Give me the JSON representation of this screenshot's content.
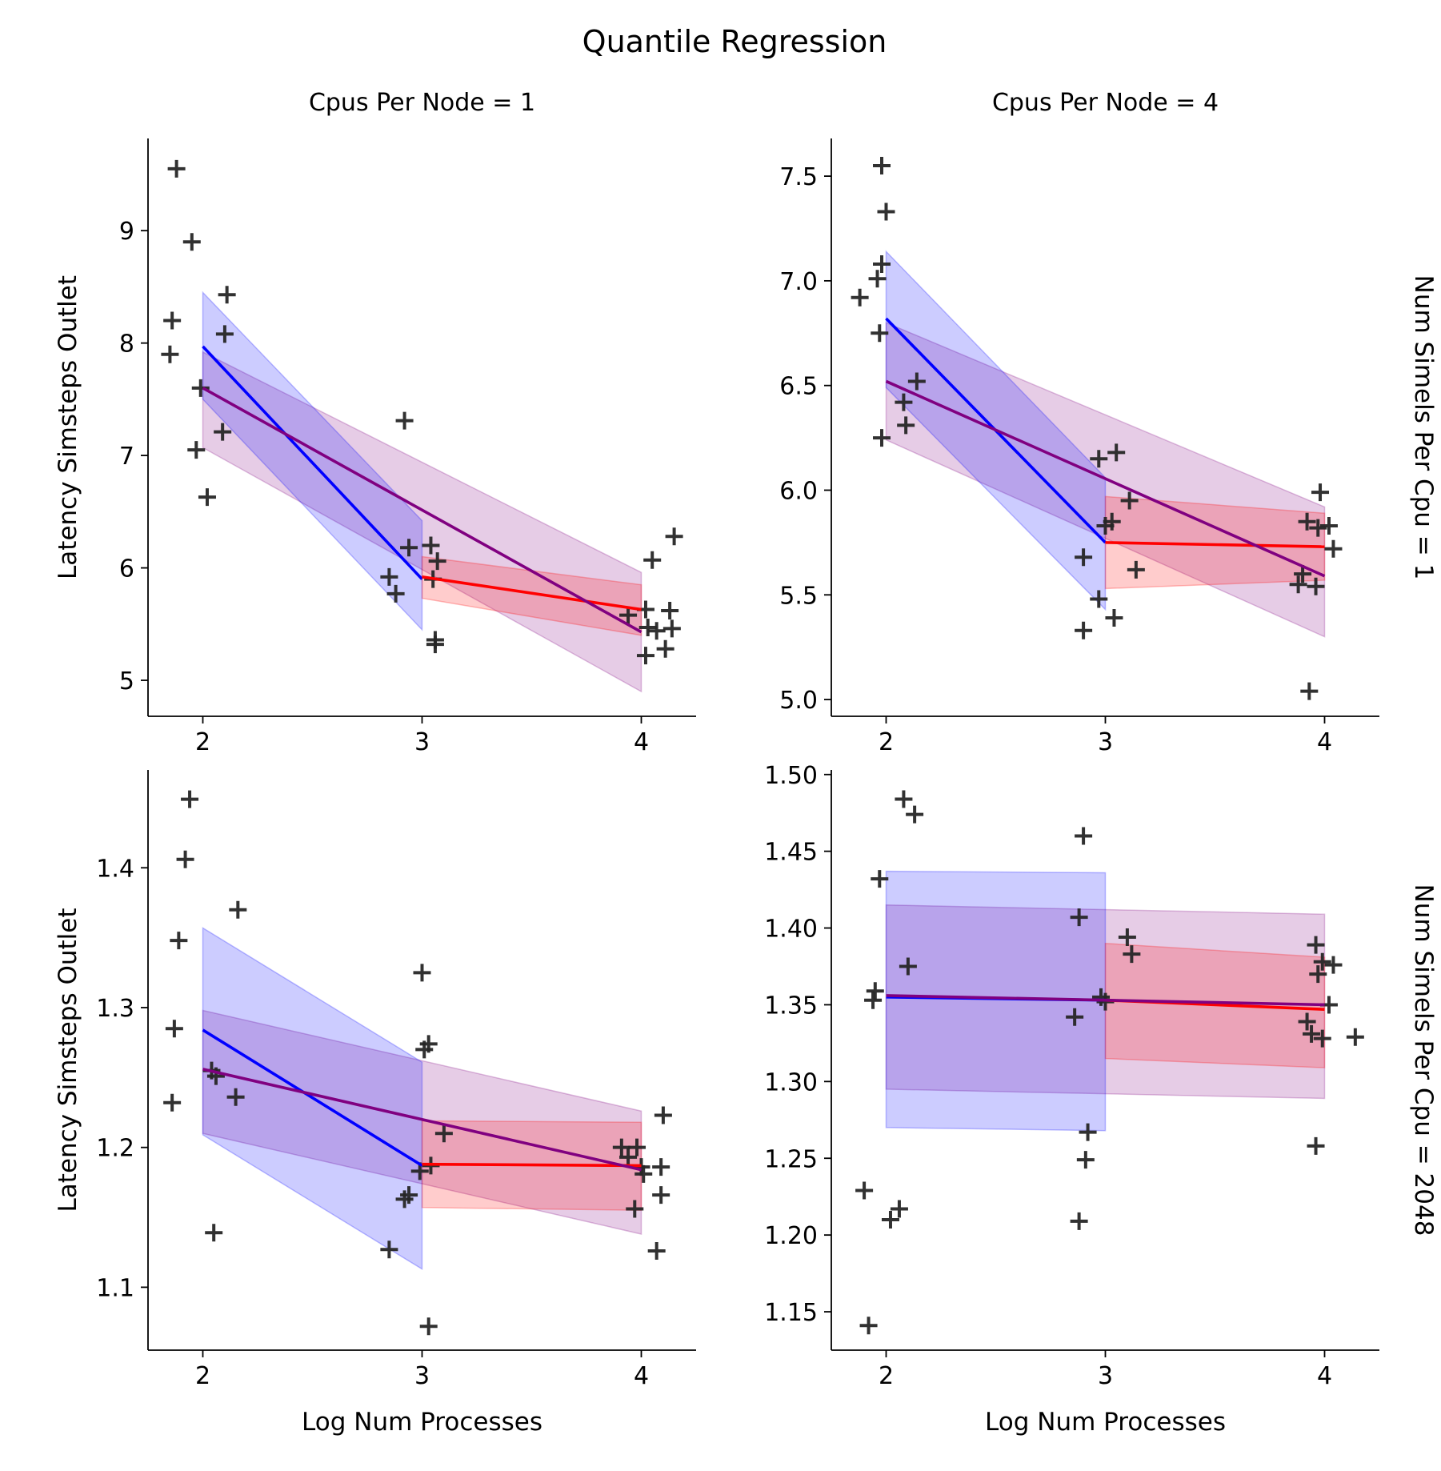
{
  "figure": {
    "title": "Quantile Regression",
    "col_titles": [
      "Cpus Per Node = 1",
      "Cpus Per Node = 4"
    ],
    "row_titles": [
      "Num Simels Per Cpu = 1",
      "Num Simels Per Cpu = 2048"
    ],
    "xlabel": "Log Num Processes",
    "ylabel": "Latency Simsteps Outlet"
  },
  "style": {
    "marker_color": "#262626",
    "marker_symbol": "+",
    "series_colors": {
      "low_segment": "#0000ff",
      "high_segment": "#ff0000",
      "overall": "#800080"
    },
    "band_colors": {
      "low_segment": "#0000ff",
      "high_segment": "#ff0000",
      "overall": "#800080"
    }
  },
  "chart_data": [
    {
      "type": "scatter",
      "title": "Cpus Per Node = 1",
      "row_label": "",
      "xlabel": "",
      "ylabel": "Latency Simsteps Outlet",
      "xlim": [
        1.75,
        4.25
      ],
      "ylim": [
        4.68,
        9.82
      ],
      "x_ticks": [
        "2",
        "3",
        "4"
      ],
      "x_tick_values": [
        2,
        3,
        4
      ],
      "y_ticks": [
        "5",
        "6",
        "7",
        "8",
        "9"
      ],
      "y_tick_values": [
        5,
        6,
        7,
        8,
        9
      ],
      "points": [
        [
          1.88,
          9.55
        ],
        [
          1.95,
          8.9
        ],
        [
          1.86,
          8.2
        ],
        [
          1.85,
          7.9
        ],
        [
          1.99,
          7.6
        ],
        [
          1.97,
          7.05
        ],
        [
          2.02,
          6.63
        ],
        [
          2.11,
          8.43
        ],
        [
          2.1,
          8.08
        ],
        [
          2.09,
          7.21
        ],
        [
          2.92,
          7.31
        ],
        [
          2.85,
          5.92
        ],
        [
          2.88,
          5.77
        ],
        [
          2.94,
          6.18
        ],
        [
          3.04,
          6.2
        ],
        [
          3.07,
          6.06
        ],
        [
          3.05,
          5.9
        ],
        [
          3.06,
          5.36
        ],
        [
          3.06,
          5.32
        ],
        [
          3.94,
          5.58
        ],
        [
          4.02,
          5.63
        ],
        [
          4.05,
          6.07
        ],
        [
          4.15,
          6.28
        ],
        [
          4.13,
          5.62
        ],
        [
          4.03,
          5.47
        ],
        [
          4.07,
          5.44
        ],
        [
          4.14,
          5.46
        ],
        [
          4.11,
          5.28
        ],
        [
          4.02,
          5.22
        ]
      ],
      "series": [
        {
          "name": "",
          "color": "#0000ff",
          "x": [
            2,
            3
          ],
          "y": [
            7.97,
            5.9
          ],
          "band_lower": [
            7.5,
            5.45
          ],
          "band_upper": [
            8.45,
            6.42
          ]
        },
        {
          "name": "",
          "color": "#ff0000",
          "x": [
            3,
            4
          ],
          "y": [
            5.92,
            5.63
          ],
          "band_lower": [
            5.73,
            5.4
          ],
          "band_upper": [
            6.1,
            5.85
          ]
        },
        {
          "name": "",
          "color": "#800080",
          "x": [
            2,
            4
          ],
          "y": [
            7.6,
            5.43
          ],
          "band_lower": [
            7.07,
            4.9
          ],
          "band_upper": [
            7.92,
            5.96
          ]
        }
      ]
    },
    {
      "type": "scatter",
      "title": "Cpus Per Node = 4",
      "row_label": "Num Simels Per Cpu = 1",
      "xlabel": "",
      "ylabel": "",
      "xlim": [
        1.75,
        4.25
      ],
      "ylim": [
        4.92,
        7.68
      ],
      "x_ticks": [
        "2",
        "3",
        "4"
      ],
      "x_tick_values": [
        2,
        3,
        4
      ],
      "y_ticks": [
        "5.0",
        "5.5",
        "6.0",
        "6.5",
        "7.0",
        "7.5"
      ],
      "y_tick_values": [
        5.0,
        5.5,
        6.0,
        6.5,
        7.0,
        7.5
      ],
      "points": [
        [
          1.98,
          7.55
        ],
        [
          2.0,
          7.33
        ],
        [
          1.98,
          7.08
        ],
        [
          1.96,
          7.01
        ],
        [
          1.88,
          6.92
        ],
        [
          1.97,
          6.75
        ],
        [
          2.14,
          6.52
        ],
        [
          2.08,
          6.42
        ],
        [
          2.09,
          6.31
        ],
        [
          1.98,
          6.25
        ],
        [
          3.05,
          6.18
        ],
        [
          2.97,
          6.15
        ],
        [
          3.11,
          5.95
        ],
        [
          3.0,
          5.83
        ],
        [
          3.03,
          5.85
        ],
        [
          2.9,
          5.68
        ],
        [
          3.14,
          5.62
        ],
        [
          2.97,
          5.48
        ],
        [
          3.04,
          5.39
        ],
        [
          2.9,
          5.33
        ],
        [
          3.98,
          5.99
        ],
        [
          3.92,
          5.85
        ],
        [
          3.97,
          5.82
        ],
        [
          4.02,
          5.83
        ],
        [
          4.04,
          5.72
        ],
        [
          3.9,
          5.6
        ],
        [
          3.88,
          5.55
        ],
        [
          3.96,
          5.54
        ],
        [
          3.93,
          5.04
        ]
      ],
      "series": [
        {
          "name": "",
          "color": "#0000ff",
          "x": [
            2,
            3
          ],
          "y": [
            6.82,
            5.75
          ],
          "band_lower": [
            6.49,
            5.43
          ],
          "band_upper": [
            7.14,
            6.06
          ]
        },
        {
          "name": "",
          "color": "#ff0000",
          "x": [
            3,
            4
          ],
          "y": [
            5.75,
            5.73
          ],
          "band_lower": [
            5.53,
            5.57
          ],
          "band_upper": [
            5.97,
            5.89
          ]
        },
        {
          "name": "",
          "color": "#800080",
          "x": [
            2,
            4
          ],
          "y": [
            6.52,
            5.59
          ],
          "band_lower": [
            6.24,
            5.3
          ],
          "band_upper": [
            6.8,
            5.92
          ]
        }
      ]
    },
    {
      "type": "scatter",
      "title": "",
      "row_label": "",
      "xlabel": "Log Num Processes",
      "ylabel": "Latency Simsteps Outlet",
      "xlim": [
        1.75,
        4.25
      ],
      "ylim": [
        1.055,
        1.47
      ],
      "x_ticks": [
        "2",
        "3",
        "4"
      ],
      "x_tick_values": [
        2,
        3,
        4
      ],
      "y_ticks": [
        "1.1",
        "1.2",
        "1.3",
        "1.4"
      ],
      "y_tick_values": [
        1.1,
        1.2,
        1.3,
        1.4
      ],
      "points": [
        [
          1.94,
          1.449
        ],
        [
          1.92,
          1.406
        ],
        [
          1.89,
          1.348
        ],
        [
          1.87,
          1.285
        ],
        [
          1.86,
          1.232
        ],
        [
          2.06,
          1.251
        ],
        [
          2.04,
          1.255
        ],
        [
          2.15,
          1.236
        ],
        [
          2.16,
          1.37
        ],
        [
          2.05,
          1.139
        ],
        [
          3.0,
          1.325
        ],
        [
          3.03,
          1.274
        ],
        [
          3.01,
          1.27
        ],
        [
          3.1,
          1.21
        ],
        [
          3.04,
          1.187
        ],
        [
          2.99,
          1.183
        ],
        [
          2.94,
          1.166
        ],
        [
          2.92,
          1.163
        ],
        [
          2.85,
          1.127
        ],
        [
          3.03,
          1.072
        ],
        [
          3.91,
          1.2
        ],
        [
          3.94,
          1.193
        ],
        [
          3.98,
          1.2
        ],
        [
          4.01,
          1.181
        ],
        [
          4.0,
          1.186
        ],
        [
          3.97,
          1.156
        ],
        [
          4.1,
          1.223
        ],
        [
          4.09,
          1.186
        ],
        [
          4.09,
          1.166
        ],
        [
          4.07,
          1.126
        ]
      ],
      "series": [
        {
          "name": "",
          "color": "#0000ff",
          "x": [
            2,
            3
          ],
          "y": [
            1.284,
            1.187
          ],
          "band_lower": [
            1.209,
            1.113
          ],
          "band_upper": [
            1.357,
            1.261
          ]
        },
        {
          "name": "",
          "color": "#ff0000",
          "x": [
            3,
            4
          ],
          "y": [
            1.188,
            1.187
          ],
          "band_lower": [
            1.157,
            1.155
          ],
          "band_upper": [
            1.219,
            1.218
          ]
        },
        {
          "name": "",
          "color": "#800080",
          "x": [
            2,
            4
          ],
          "y": [
            1.256,
            1.184
          ],
          "band_lower": [
            1.21,
            1.138
          ],
          "band_upper": [
            1.298,
            1.226
          ]
        }
      ]
    },
    {
      "type": "scatter",
      "title": "",
      "row_label": "Num Simels Per Cpu = 2048",
      "xlabel": "Log Num Processes",
      "ylabel": "",
      "xlim": [
        1.75,
        4.25
      ],
      "ylim": [
        1.125,
        1.503
      ],
      "x_ticks": [
        "2",
        "3",
        "4"
      ],
      "x_tick_values": [
        2,
        3,
        4
      ],
      "y_ticks": [
        "1.15",
        "1.20",
        "1.25",
        "1.30",
        "1.35",
        "1.40",
        "1.45",
        "1.50"
      ],
      "y_tick_values": [
        1.15,
        1.2,
        1.25,
        1.3,
        1.35,
        1.4,
        1.45,
        1.5
      ],
      "points": [
        [
          2.08,
          1.484
        ],
        [
          2.13,
          1.474
        ],
        [
          1.97,
          1.432
        ],
        [
          2.1,
          1.375
        ],
        [
          1.95,
          1.359
        ],
        [
          1.94,
          1.353
        ],
        [
          1.9,
          1.229
        ],
        [
          2.06,
          1.217
        ],
        [
          2.02,
          1.21
        ],
        [
          1.92,
          1.141
        ],
        [
          2.9,
          1.46
        ],
        [
          2.88,
          1.407
        ],
        [
          2.98,
          1.355
        ],
        [
          3.0,
          1.352
        ],
        [
          2.86,
          1.342
        ],
        [
          2.92,
          1.267
        ],
        [
          2.91,
          1.249
        ],
        [
          2.88,
          1.209
        ],
        [
          3.1,
          1.394
        ],
        [
          3.12,
          1.383
        ],
        [
          3.96,
          1.389
        ],
        [
          3.99,
          1.378
        ],
        [
          4.04,
          1.376
        ],
        [
          3.97,
          1.37
        ],
        [
          4.02,
          1.35
        ],
        [
          3.92,
          1.339
        ],
        [
          3.94,
          1.331
        ],
        [
          3.99,
          1.328
        ],
        [
          4.14,
          1.329
        ],
        [
          3.96,
          1.258
        ]
      ],
      "series": [
        {
          "name": "",
          "color": "#0000ff",
          "x": [
            2,
            3
          ],
          "y": [
            1.355,
            1.353
          ],
          "band_lower": [
            1.27,
            1.268
          ],
          "band_upper": [
            1.437,
            1.436
          ]
        },
        {
          "name": "",
          "color": "#ff0000",
          "x": [
            3,
            4
          ],
          "y": [
            1.353,
            1.347
          ],
          "band_lower": [
            1.315,
            1.309
          ],
          "band_upper": [
            1.39,
            1.381
          ]
        },
        {
          "name": "",
          "color": "#800080",
          "x": [
            2,
            4
          ],
          "y": [
            1.356,
            1.35
          ],
          "band_lower": [
            1.295,
            1.289
          ],
          "band_upper": [
            1.415,
            1.409
          ]
        }
      ]
    }
  ]
}
